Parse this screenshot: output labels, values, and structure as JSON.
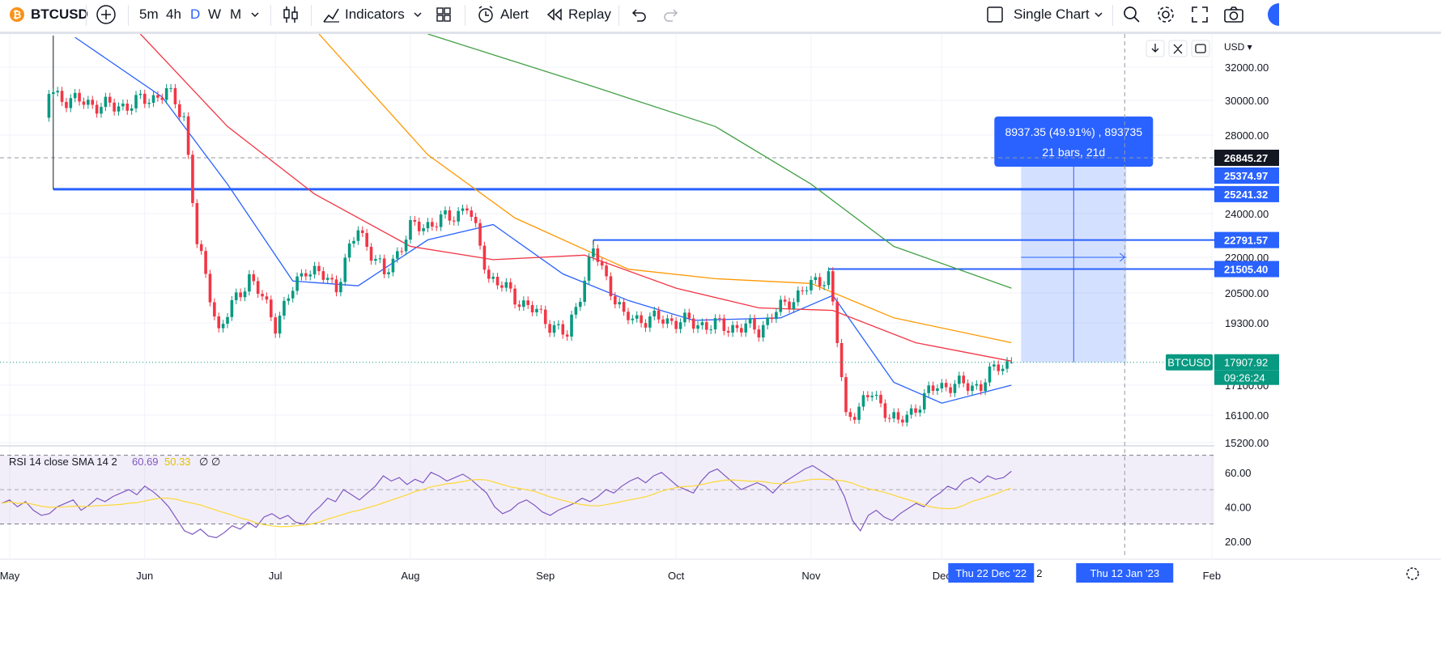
{
  "toolbar": {
    "symbol": "BTCUSD",
    "timeframes": [
      "5m",
      "4h",
      "D",
      "W",
      "M"
    ],
    "active_timeframe": "D",
    "indicators_label": "Indicators",
    "alert_label": "Alert",
    "replay_label": "Replay",
    "layout_label": "Single Chart",
    "icons": [
      "bitcoin-icon",
      "add-symbol-icon",
      "timeframe-chevron-icon",
      "candle-type-icon",
      "indicators-icon",
      "indicators-chevron-icon",
      "templates-icon",
      "alert-icon",
      "replay-icon",
      "undo-icon",
      "redo-icon",
      "layout-checkbox-icon",
      "layout-chevron-icon",
      "search-icon",
      "gear-icon",
      "fullscreen-icon",
      "camera-icon",
      "profile-avatar"
    ]
  },
  "price_axis": {
    "currency": "USD",
    "ticks": [
      "32000.00",
      "30000.00",
      "28000.00",
      "24000.00",
      "22000.00",
      "20500.00",
      "19300.00",
      "17100.00",
      "16100.00",
      "15200.00"
    ],
    "level_labels": [
      "26845.27",
      "25374.97",
      "25241.32",
      "22791.57",
      "21505.40"
    ],
    "last_price": "17907.92",
    "countdown": "09:26:24",
    "symbol_tag": "BTCUSD",
    "up_color": "#089981",
    "down_color": "#f23645"
  },
  "time_axis": {
    "labels": [
      "May",
      "Jun",
      "Jul",
      "Aug",
      "Sep",
      "Oct",
      "Nov",
      "Dec",
      "Feb"
    ],
    "crosshair_start": "Thu 22 Dec '22",
    "crosshair_end": "Thu 12 Jan '23",
    "partial_label": "2"
  },
  "measure_tool": {
    "line1": "8937.35 (49.91%) , 893735",
    "line2": "21 bars, 21d"
  },
  "rsi": {
    "legend_name": "RSI 14 close SMA 14 2",
    "value": "60.69",
    "sma_value": "50.33",
    "extra1": "∅",
    "extra2": "∅",
    "ticks": [
      "60.00",
      "40.00",
      "20.00"
    ],
    "bands": [
      30,
      70
    ],
    "rsi_color": "#7e57c2",
    "sma_color": "#fdd835"
  },
  "chart_data": {
    "type": "candlestick",
    "symbol": "BTCUSD",
    "interval": "D",
    "price_range": [
      15000,
      33000
    ],
    "ohlc_close_series": [
      {
        "date": "2022-05-10",
        "close": 30500
      },
      {
        "date": "2022-05-15",
        "close": 30000
      },
      {
        "date": "2022-05-25",
        "close": 29600
      },
      {
        "date": "2022-06-01",
        "close": 30000
      },
      {
        "date": "2022-06-06",
        "close": 30500
      },
      {
        "date": "2022-06-10",
        "close": 29100
      },
      {
        "date": "2022-06-13",
        "close": 22600
      },
      {
        "date": "2022-06-18",
        "close": 19000
      },
      {
        "date": "2022-06-25",
        "close": 21200
      },
      {
        "date": "2022-07-01",
        "close": 19300
      },
      {
        "date": "2022-07-08",
        "close": 21600
      },
      {
        "date": "2022-07-15",
        "close": 20800
      },
      {
        "date": "2022-07-20",
        "close": 23300
      },
      {
        "date": "2022-07-26",
        "close": 21200
      },
      {
        "date": "2022-08-01",
        "close": 23300
      },
      {
        "date": "2022-08-10",
        "close": 23800
      },
      {
        "date": "2022-08-14",
        "close": 24400
      },
      {
        "date": "2022-08-19",
        "close": 21200
      },
      {
        "date": "2022-08-26",
        "close": 20200
      },
      {
        "date": "2022-09-06",
        "close": 18800
      },
      {
        "date": "2022-09-12",
        "close": 22300
      },
      {
        "date": "2022-09-19",
        "close": 19500
      },
      {
        "date": "2022-09-30",
        "close": 19400
      },
      {
        "date": "2022-10-10",
        "close": 19200
      },
      {
        "date": "2022-10-20",
        "close": 19100
      },
      {
        "date": "2022-10-27",
        "close": 20200
      },
      {
        "date": "2022-11-05",
        "close": 21300
      },
      {
        "date": "2022-11-09",
        "close": 16000
      },
      {
        "date": "2022-11-15",
        "close": 16800
      },
      {
        "date": "2022-11-21",
        "close": 15800
      },
      {
        "date": "2022-11-30",
        "close": 17100
      },
      {
        "date": "2022-12-10",
        "close": 17100
      },
      {
        "date": "2022-12-14",
        "close": 17800
      },
      {
        "date": "2022-12-17",
        "close": 17907.92
      }
    ],
    "moving_averages": [
      {
        "color": "#2962ff",
        "end_value": 17100
      },
      {
        "color": "#f23645",
        "end_value": 17950
      },
      {
        "color": "#ff9800",
        "end_value": 18600
      },
      {
        "color": "#43a047",
        "end_value": 20700
      }
    ],
    "horizontal_levels": [
      25241.32,
      22791.57,
      21505.4
    ],
    "measure": {
      "from_date": "2022-12-22",
      "to_date": "2023-01-12",
      "from_price": 17907.92,
      "to_price": 26845.27,
      "change": 8937.35,
      "change_pct": 49.91,
      "bars": 21
    },
    "rsi_values": [
      42,
      44,
      40,
      43,
      38,
      35,
      36,
      40,
      42,
      44,
      38,
      41,
      45,
      43,
      46,
      48,
      50,
      47,
      52,
      49,
      45,
      40,
      33,
      26,
      24,
      27,
      23,
      22,
      25,
      29,
      27,
      31,
      28,
      34,
      36,
      33,
      35,
      31,
      30,
      36,
      40,
      45,
      43,
      50,
      47,
      44,
      48,
      52,
      58,
      55,
      57,
      53,
      56,
      54,
      60,
      58,
      55,
      57,
      59,
      56,
      52,
      48,
      40,
      36,
      38,
      42,
      44,
      41,
      37,
      35,
      38,
      40,
      42,
      45,
      43,
      46,
      50,
      48,
      52,
      55,
      57,
      54,
      58,
      60,
      56,
      52,
      50,
      48,
      55,
      60,
      62,
      58,
      54,
      50,
      52,
      54,
      52,
      48,
      53,
      56,
      59,
      62,
      64,
      61,
      58,
      55,
      46,
      32,
      26,
      35,
      38,
      34,
      32,
      36,
      39,
      42,
      40,
      45,
      48,
      52,
      50,
      55,
      57,
      54,
      58,
      56,
      57,
      60.69
    ]
  }
}
